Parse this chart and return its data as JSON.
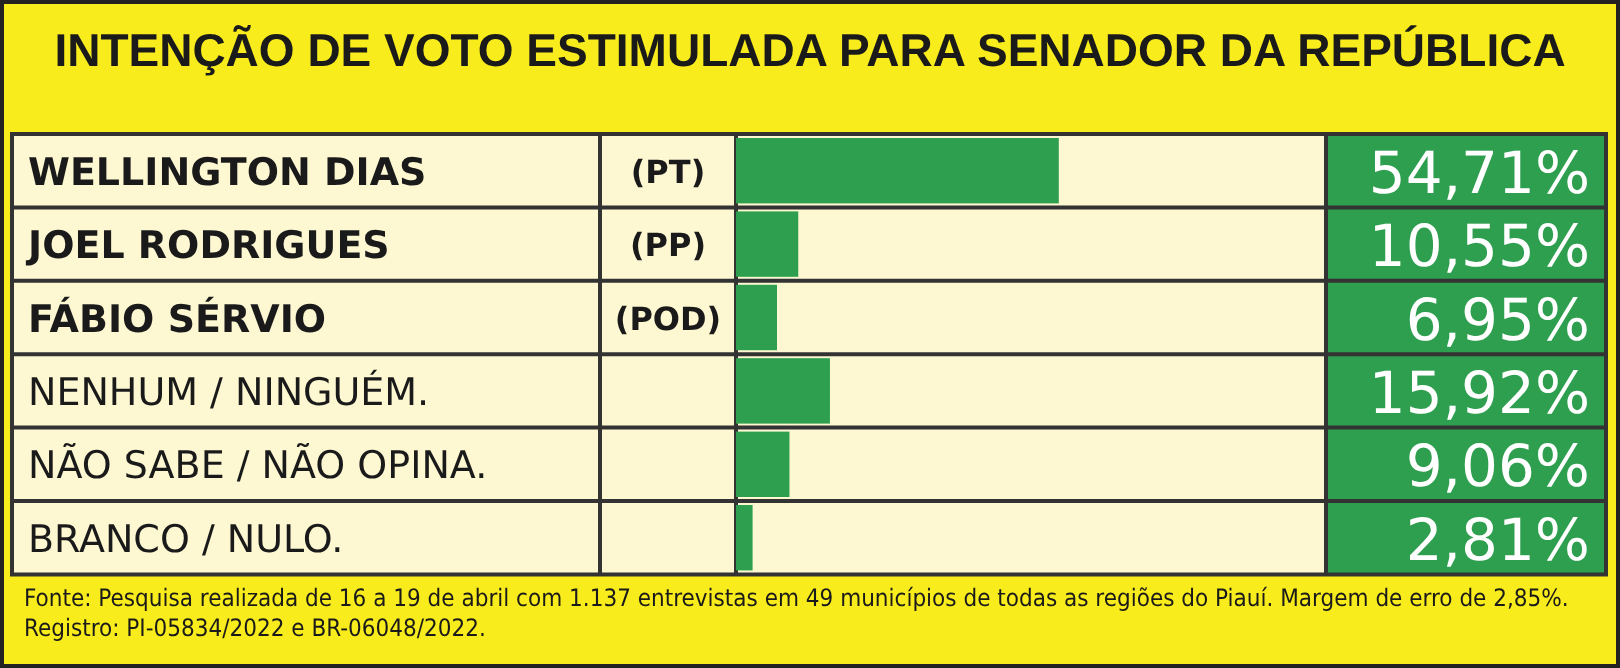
{
  "chart_data": {
    "type": "bar",
    "orientation": "horizontal",
    "title": "INTENÇÃO DE VOTO ESTIMULADA PARA SENADOR DA REPÚBLICA",
    "categories": [
      "WELLINGTON DIAS",
      "JOEL RODRIGUES",
      "FÁBIO SÉRVIO",
      "NENHUM / NINGUÉM.",
      "NÃO SABE / NÃO OPINA.",
      "BRANCO / NULO."
    ],
    "values": [
      54.71,
      10.55,
      6.95,
      15.92,
      9.06,
      2.81
    ],
    "value_labels": [
      "54,71%",
      "10,55%",
      "6,95%",
      "15,92%",
      "9,06%",
      "2,81%"
    ],
    "color": "#2e9e4f",
    "xlim": [
      0,
      100
    ],
    "tick_labels": false,
    "annotations": [
      "(PT)",
      "(PP)",
      "(POD)",
      "Fonte: Pesquisa realizada de 16 a 19 de abril com 1.137 entrevistas em 49 municípios de todas as regiões do Piauí. Margem de erro de 2,85%. Registro: PI-05834/2022 e BR-06048/2022."
    ]
  }
}
